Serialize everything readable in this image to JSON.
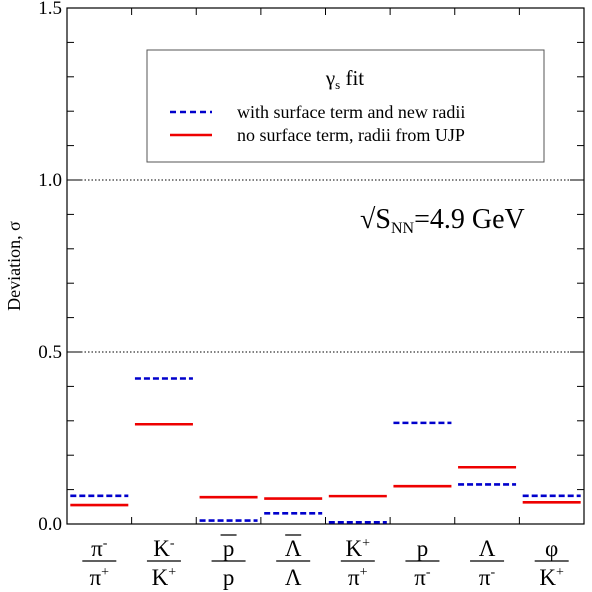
{
  "chart_data": {
    "type": "scatter",
    "ylabel": "Deviation, σ",
    "ylim": [
      0,
      1.5
    ],
    "y_ticks": [
      "0.0",
      "0.5",
      "1.0",
      "1.5"
    ],
    "reference_lines": [
      0.5,
      1.0
    ],
    "annotation": {
      "prefix": "√S",
      "sub": "NN",
      "suffix": "=4.9 GeV"
    },
    "legend": {
      "title_main": "γ",
      "title_sub": "s",
      "title_suffix": " fit",
      "placement": "top-center"
    },
    "categories": [
      {
        "num": "π",
        "num_sup": "-",
        "den": "π",
        "den_sup": "+",
        "num_overline": false,
        "den_overline": false
      },
      {
        "num": "K",
        "num_sup": "-",
        "den": "K",
        "den_sup": "+",
        "num_overline": false,
        "den_overline": false
      },
      {
        "num": "p",
        "num_sup": "",
        "den": "p",
        "den_sup": "",
        "num_overline": true,
        "den_overline": false
      },
      {
        "num": "Λ",
        "num_sup": "",
        "den": "Λ",
        "den_sup": "",
        "num_overline": true,
        "den_overline": false
      },
      {
        "num": "K",
        "num_sup": "+",
        "den": "π",
        "den_sup": "+",
        "num_overline": false,
        "den_overline": false
      },
      {
        "num": "p",
        "num_sup": "",
        "den": "π",
        "den_sup": "-",
        "num_overline": false,
        "den_overline": false
      },
      {
        "num": "Λ",
        "num_sup": "",
        "den": "π",
        "den_sup": "-",
        "num_overline": false,
        "den_overline": false
      },
      {
        "num": "φ",
        "num_sup": "",
        "den": "K",
        "den_sup": "+",
        "num_overline": false,
        "den_overline": false
      }
    ],
    "series": [
      {
        "name": "with surface term and new radii",
        "color": "#0000cc",
        "dash": true,
        "values": [
          0.082,
          0.423,
          0.01,
          0.031,
          0.005,
          0.294,
          0.115,
          0.082
        ]
      },
      {
        "name": "no surface term, radii from UJP",
        "color": "#ee0000",
        "dash": false,
        "values": [
          0.055,
          0.29,
          0.078,
          0.074,
          0.081,
          0.11,
          0.165,
          0.063
        ]
      }
    ]
  }
}
